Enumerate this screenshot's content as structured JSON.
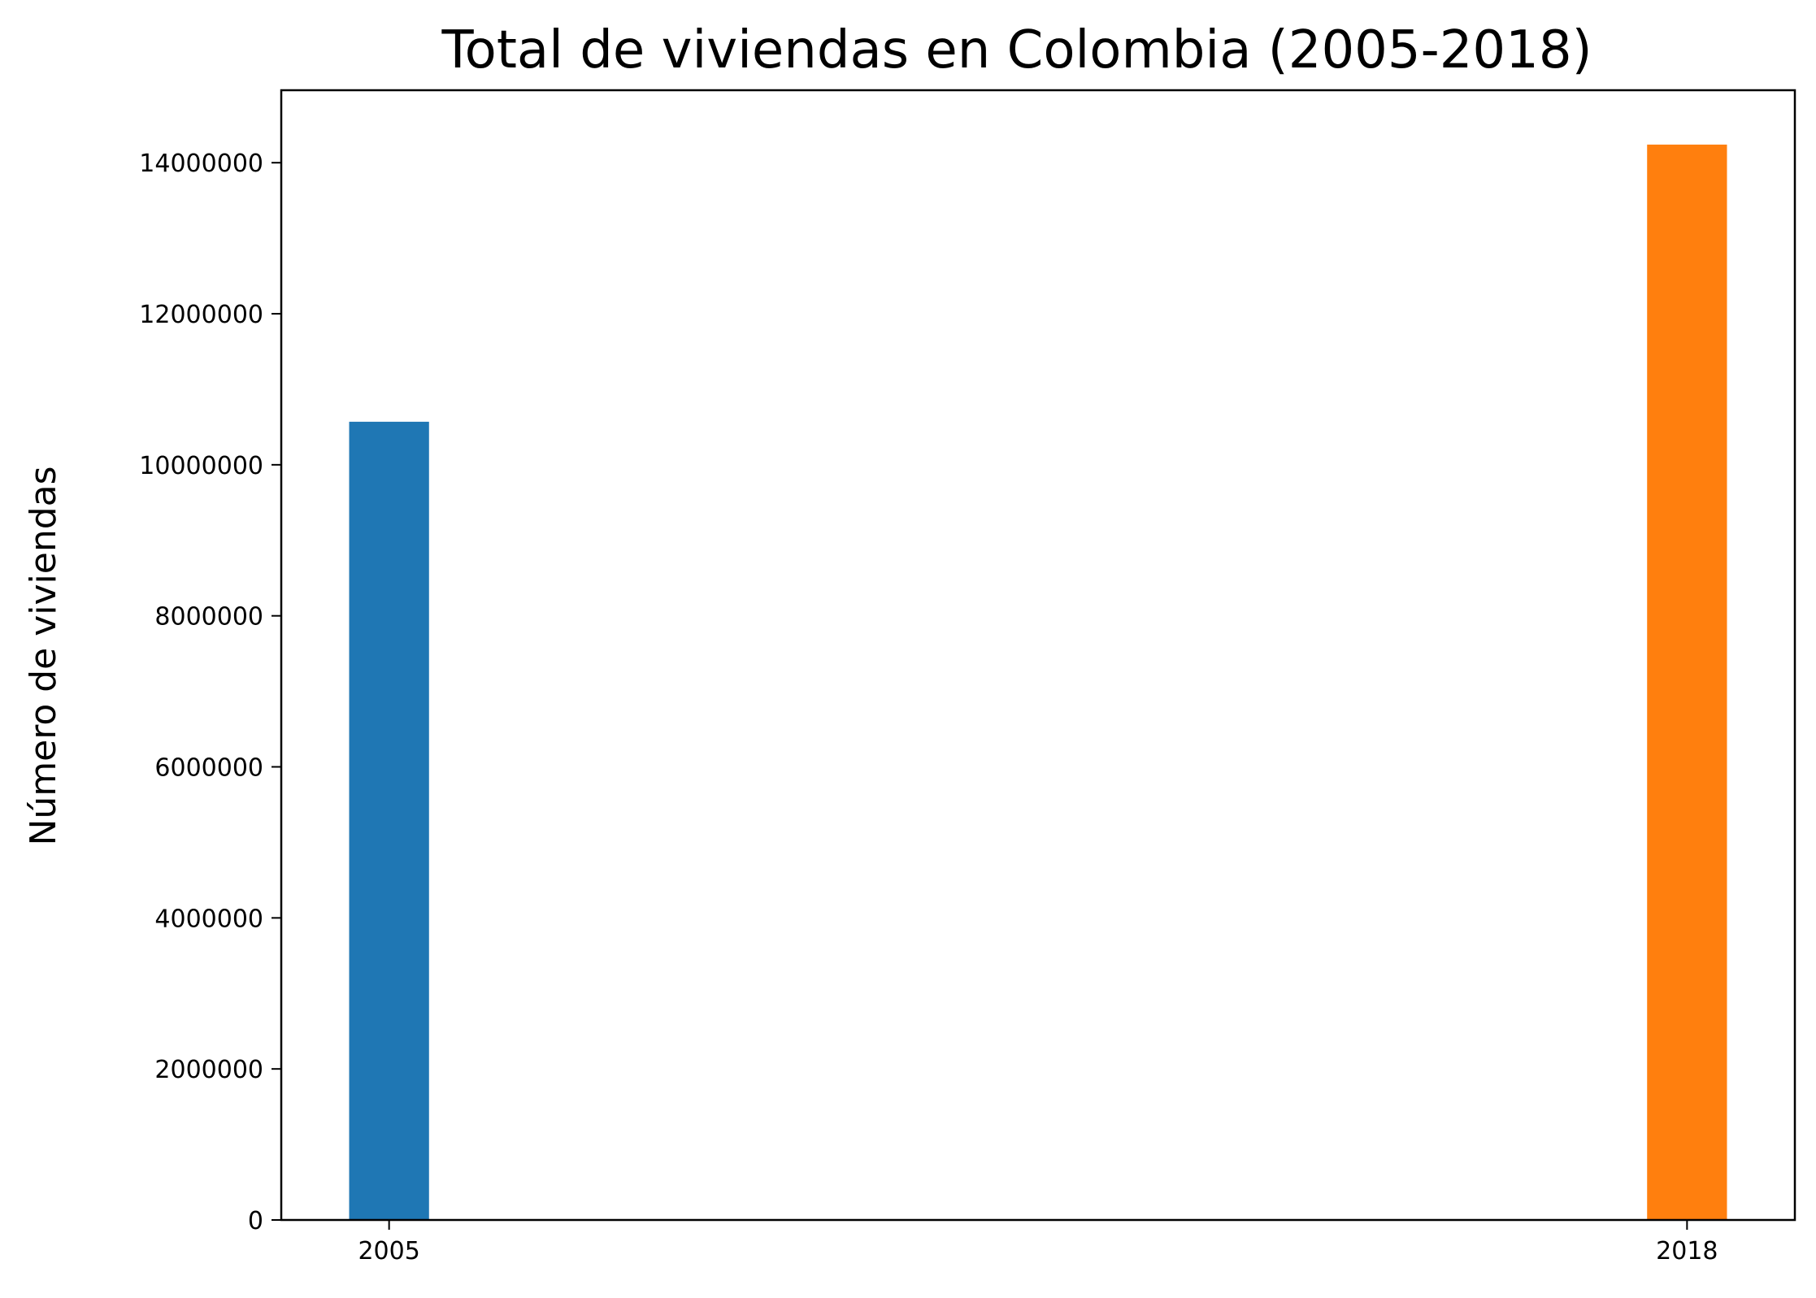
{
  "chart_data": {
    "type": "bar",
    "title": "Total de viviendas en Colombia (2005-2018)",
    "xlabel": "",
    "ylabel": "Número de viviendas",
    "x": [
      2005,
      2018
    ],
    "values": [
      10570000,
      14240000
    ],
    "bar_colors": [
      "#1f77b4",
      "#ff7f0e"
    ],
    "xlim": [
      2003.92,
      2019.08
    ],
    "ylim": [
      0,
      14960000
    ],
    "xticks": [
      2005,
      2018
    ],
    "xtick_labels": [
      "2005",
      "2018"
    ],
    "yticks": [
      0,
      2000000,
      4000000,
      6000000,
      8000000,
      10000000,
      12000000,
      14000000
    ],
    "ytick_labels": [
      "0",
      "2000000",
      "4000000",
      "6000000",
      "8000000",
      "10000000",
      "12000000",
      "14000000"
    ],
    "bar_width": 0.8,
    "grid": false,
    "legend": false
  }
}
